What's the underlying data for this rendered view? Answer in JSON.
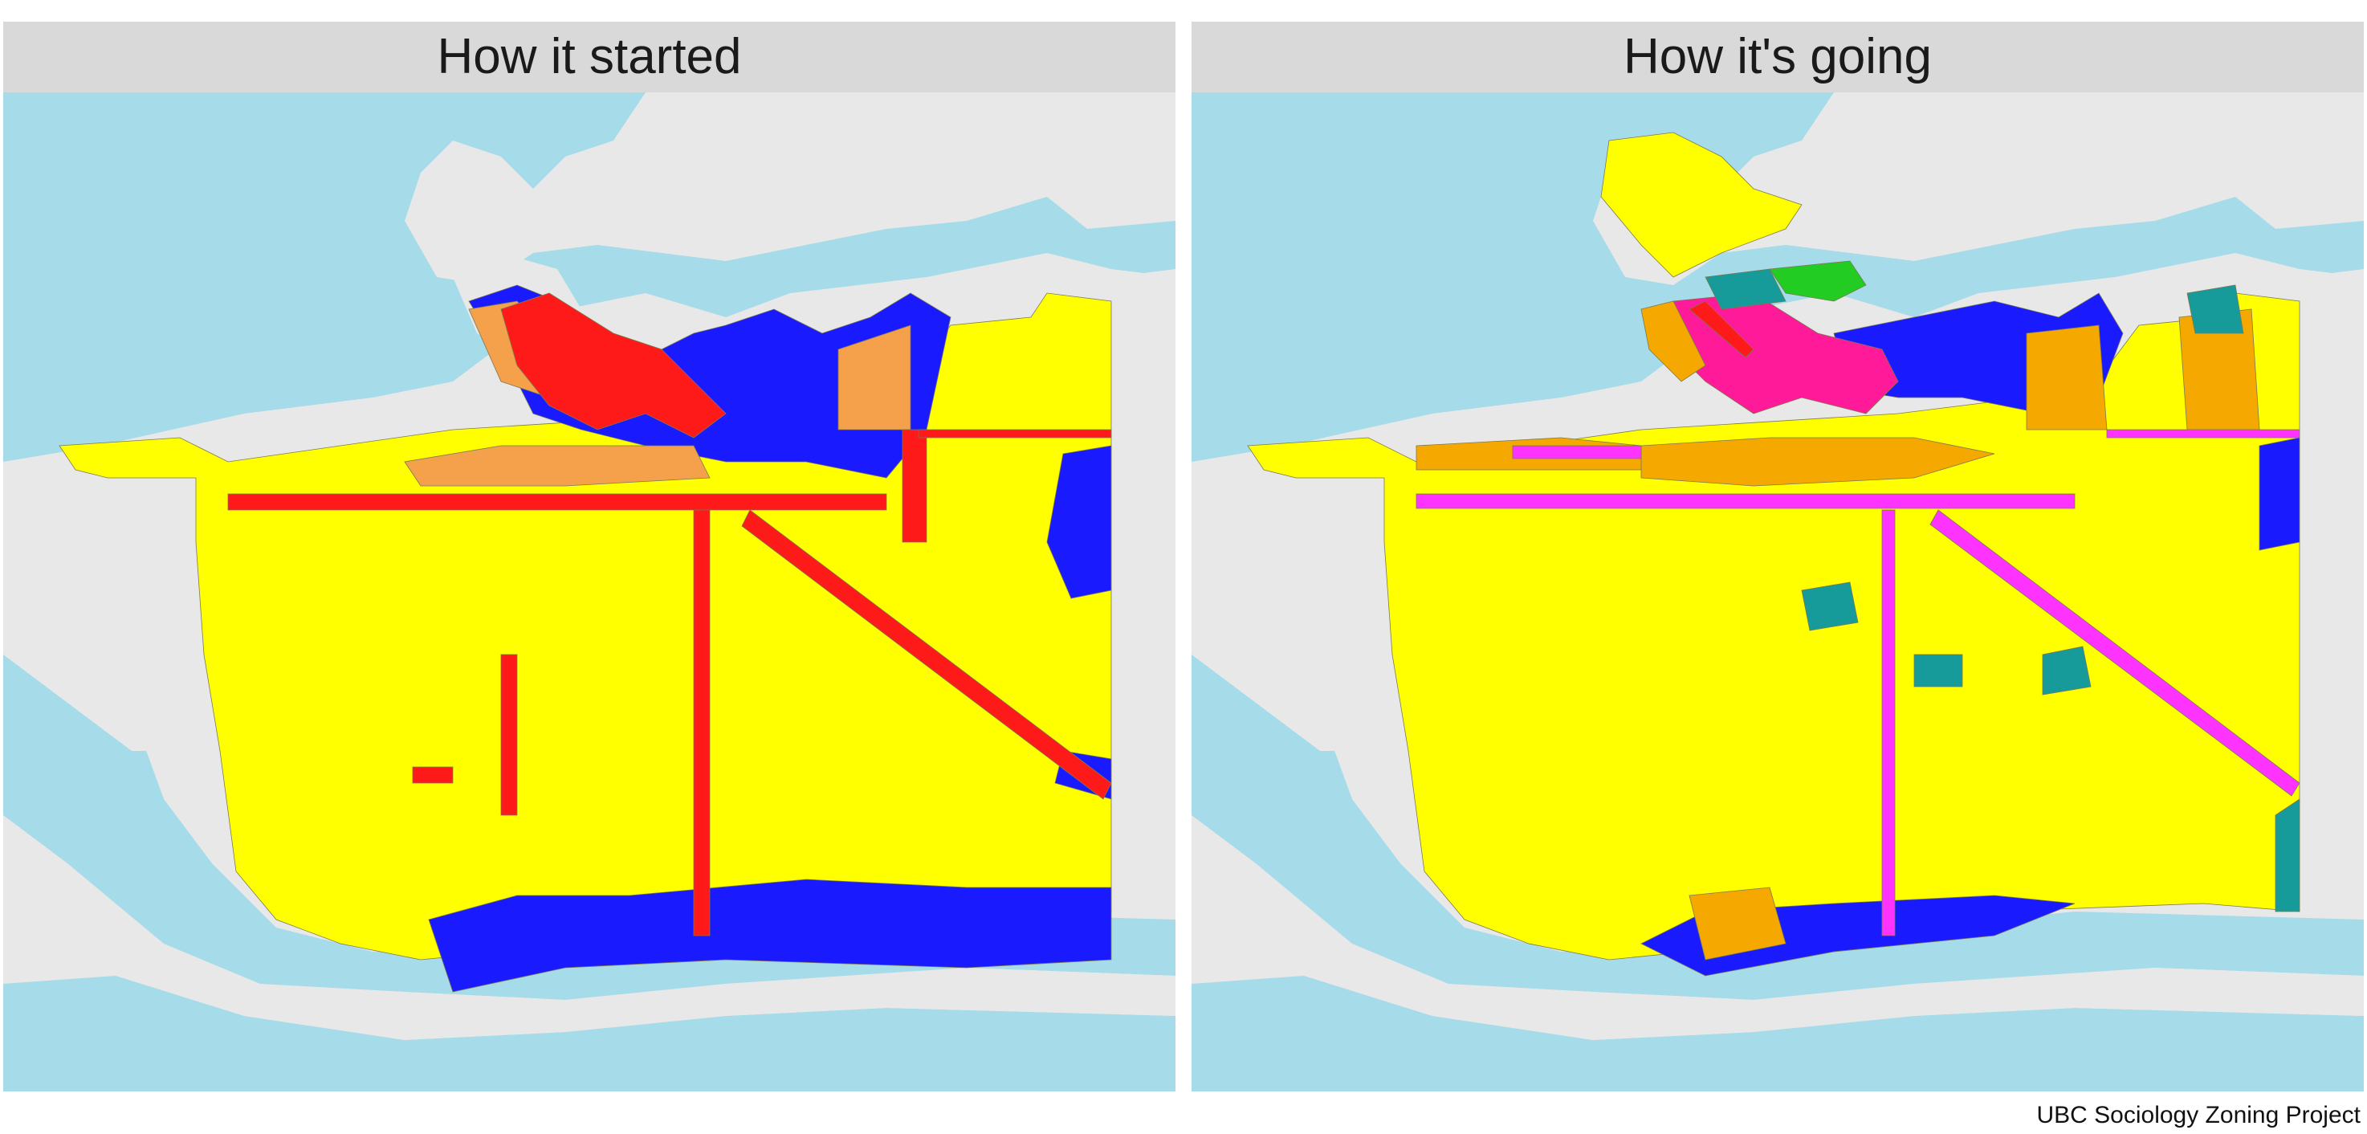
{
  "panels": [
    {
      "title": "How it started",
      "zone_colors": {
        "low_density": "#ffff00",
        "commercial_corridor": "#ff1a1a",
        "industrial": "#1a1aff",
        "mixed_medium": "#f5a04a"
      }
    },
    {
      "title": "How it's going",
      "zone_colors": {
        "low_density": "#ffff00",
        "corridor": "#ff33ff",
        "industrial": "#1a1aff",
        "medium_density": "#f5a800",
        "comprehensive_development": "#179a9a",
        "downtown": "#ff1a99",
        "parks": "#22cc22",
        "commercial_corridor": "#ff1a1a"
      }
    }
  ],
  "map_colors": {
    "water": "#a6dbe9",
    "land": "#e8e8e8"
  },
  "caption": "UBC Sociology Zoning Project"
}
